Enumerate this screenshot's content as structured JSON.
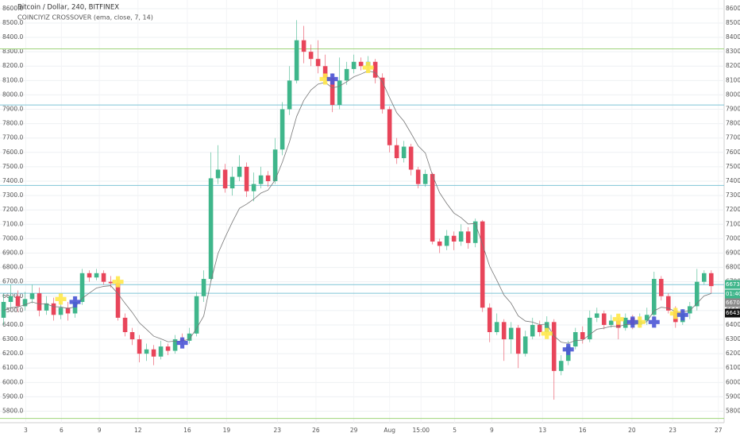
{
  "chart_data": {
    "type": "candlestick",
    "title": "Bitcoin / Dollar, 240, BITFINEX",
    "subtitle": "COINCIYIZ CROSSOVER (ema, close, 7, 14)",
    "up_color": "#3fb68b",
    "down_color": "#e8455a",
    "ema_color": "#777777",
    "open": [
      6450,
      6560,
      6600,
      6530,
      6580,
      6620,
      6500,
      6550,
      6470,
      6520,
      6480,
      6560,
      6760,
      6730,
      6760,
      6700,
      6690,
      6450,
      6350,
      6300,
      6200,
      6230,
      6180,
      6250,
      6220,
      6300,
      6290,
      6340,
      6600,
      6720,
      7420,
      7480,
      7350,
      7430,
      7500,
      7330,
      7380,
      7440,
      7400,
      7620,
      7900,
      8100,
      8380,
      8300,
      8250,
      8200,
      8120,
      7930,
      8100,
      8180,
      8230,
      8200,
      8230,
      8120,
      7900,
      7650,
      7560,
      7640,
      7480,
      7380,
      7450,
      6980,
      6950,
      7020,
      6980,
      7050,
      6970,
      7120,
      6520,
      6350,
      6420,
      6300,
      6380,
      6200,
      6320,
      6400,
      6350,
      6420,
      6080,
      6150,
      6250,
      6350,
      6300,
      6450,
      6480,
      6400,
      6430,
      6380,
      6450,
      6400,
      6430,
      6470,
      6720,
      6600,
      6500,
      6420,
      6480,
      6530,
      6700,
      6760
    ],
    "high": [
      6620,
      6680,
      6640,
      6630,
      6680,
      6660,
      6600,
      6590,
      6570,
      6560,
      6600,
      6790,
      6780,
      6790,
      6780,
      6740,
      6720,
      6480,
      6380,
      6330,
      6270,
      6260,
      6290,
      6270,
      6330,
      6340,
      6380,
      6630,
      6780,
      7600,
      7650,
      7520,
      7500,
      7580,
      7530,
      7460,
      7500,
      7470,
      7700,
      7950,
      8200,
      8520,
      8480,
      8350,
      8380,
      8280,
      8150,
      8260,
      8230,
      8280,
      8260,
      8270,
      8250,
      8150,
      7920,
      7700,
      7680,
      7660,
      7500,
      7480,
      7460,
      7000,
      7060,
      7050,
      7100,
      7080,
      7140,
      7130,
      6550,
      6480,
      6440,
      6420,
      6400,
      6360,
      6450,
      6430,
      6460,
      6440,
      6190,
      6290,
      6380,
      6390,
      6500,
      6520,
      6500,
      6470,
      6450,
      6480,
      6470,
      6480,
      6520,
      6770,
      6740,
      6620,
      6530,
      6510,
      6560,
      6790,
      6780,
      6780
    ],
    "low": [
      6400,
      6520,
      6490,
      6500,
      6550,
      6460,
      6470,
      6430,
      6440,
      6430,
      6450,
      6540,
      6700,
      6710,
      6680,
      6660,
      6430,
      6320,
      6260,
      6140,
      6150,
      6120,
      6160,
      6190,
      6200,
      6260,
      6270,
      6320,
      6560,
      6700,
      7380,
      7320,
      7300,
      7400,
      7290,
      7260,
      7350,
      7360,
      7380,
      7580,
      7860,
      8080,
      8220,
      8200,
      8150,
      8080,
      7880,
      7900,
      8070,
      8150,
      8170,
      8170,
      8080,
      7870,
      7600,
      7520,
      7530,
      7440,
      7350,
      7360,
      6960,
      6900,
      6920,
      6920,
      6950,
      6930,
      6940,
      6490,
      6280,
      6330,
      6150,
      6200,
      6100,
      6180,
      6300,
      6320,
      6330,
      5880,
      6050,
      6120,
      6230,
      6270,
      6280,
      6420,
      6370,
      6380,
      6300,
      6360,
      6370,
      6380,
      6400,
      6450,
      6570,
      6480,
      6380,
      6400,
      6440,
      6500,
      6680,
      6620
    ],
    "close": [
      6560,
      6600,
      6530,
      6580,
      6620,
      6500,
      6550,
      6470,
      6520,
      6480,
      6560,
      6760,
      6730,
      6760,
      6700,
      6690,
      6450,
      6350,
      6300,
      6200,
      6230,
      6180,
      6250,
      6220,
      6300,
      6290,
      6340,
      6600,
      6720,
      7420,
      7480,
      7350,
      7430,
      7500,
      7330,
      7380,
      7440,
      7400,
      7620,
      7900,
      8100,
      8380,
      8300,
      8250,
      8200,
      8120,
      7930,
      8100,
      8180,
      8230,
      8200,
      8230,
      8120,
      7900,
      7650,
      7560,
      7640,
      7480,
      7380,
      7450,
      6980,
      6950,
      7020,
      6980,
      7050,
      6970,
      7120,
      6520,
      6350,
      6420,
      6300,
      6380,
      6200,
      6320,
      6400,
      6350,
      6420,
      6080,
      6150,
      6250,
      6350,
      6300,
      6450,
      6480,
      6400,
      6430,
      6380,
      6450,
      6400,
      6430,
      6470,
      6720,
      6600,
      6500,
      6420,
      6480,
      6530,
      6700,
      6760,
      6670
    ],
    "ema": [
      6500,
      6520,
      6525,
      6540,
      6560,
      6545,
      6546,
      6527,
      6525,
      6514,
      6526,
      6585,
      6622,
      6657,
      6668,
      6673,
      6617,
      6550,
      6487,
      6415,
      6369,
      6322,
      6304,
      6283,
      6287,
      6288,
      6301,
      6376,
      6462,
      6702,
      6897,
      7010,
      7115,
      7211,
      7240,
      7275,
      7317,
      7338,
      7409,
      7532,
      7674,
      7850,
      7962,
      8034,
      8075,
      8087,
      8048,
      8061,
      8091,
      8126,
      8145,
      8167,
      8155,
      8091,
      7981,
      7876,
      7817,
      7733,
      7645,
      7596,
      7442,
      7319,
      7244,
      7178,
      7146,
      7102,
      7106,
      6960,
      6808,
      6711,
      6608,
      6551,
      6463,
      6427,
      6420,
      6402,
      6406,
      6324,
      6280,
      6272,
      6292,
      6294,
      6333,
      6370,
      6378,
      6391,
      6388,
      6403,
      6402,
      6409,
      6424,
      6498,
      6523,
      6517,
      6493,
      6490,
      6500,
      6550,
      6602,
      6619
    ],
    "crosses": [
      {
        "color": "#ffe84a",
        "x": [
          8,
          16,
          45,
          51,
          76,
          86,
          89,
          94
        ],
        "y": [
          6580,
          6700,
          8110,
          8190,
          6340,
          6440,
          6420,
          6480
        ]
      },
      {
        "color": "#4b57d6",
        "x": [
          10,
          25,
          46,
          79,
          88,
          91,
          95
        ],
        "y": [
          6560,
          6275,
          8110,
          6230,
          6420,
          6420,
          6470
        ]
      }
    ],
    "hlines": [
      {
        "value": 8320,
        "color": "#9ed47a"
      },
      {
        "value": 7930,
        "color": "#7fc4d6"
      },
      {
        "value": 7370,
        "color": "#7fc4d6"
      },
      {
        "value": 6680,
        "color": "#7fc4d6"
      },
      {
        "value": 6620,
        "color": "#7fc4d6"
      },
      {
        "value": 5750,
        "color": "#9ed47a"
      }
    ],
    "price_labels": [
      {
        "text": 6673.1,
        "color": "#3fb68b"
      },
      {
        "text": "01:40:11",
        "color": "#3fb68b"
      },
      {
        "text": 6670.7,
        "color": "#8a8a8a"
      },
      {
        "text": 6643.7,
        "color": "#111111"
      }
    ],
    "xlim": [
      -0.5,
      100.8
    ],
    "ylim": [
      5720,
      8660
    ],
    "xticks": [
      {
        "value": 3.1,
        "label": "3"
      },
      {
        "value": 8.1,
        "label": "6"
      },
      {
        "value": 13.4,
        "label": "9"
      },
      {
        "value": 18.8,
        "label": "12"
      },
      {
        "value": 25.7,
        "label": "16"
      },
      {
        "value": 31.2,
        "label": "19"
      },
      {
        "value": 38.3,
        "label": "23"
      },
      {
        "value": 43.7,
        "label": "26"
      },
      {
        "value": 49,
        "label": "29"
      },
      {
        "value": 54,
        "label": "Aug"
      },
      {
        "value": 58.4,
        "label": "15:00"
      },
      {
        "value": 63.1,
        "label": "5"
      },
      {
        "value": 68.3,
        "label": "9"
      },
      {
        "value": 75.4,
        "label": "13"
      },
      {
        "value": 81,
        "label": "16"
      },
      {
        "value": 87.9,
        "label": "20"
      },
      {
        "value": 93.6,
        "label": "23"
      },
      {
        "value": 100,
        "label": "27"
      }
    ],
    "yticks": [
      {
        "value": 5800,
        "label": "5800.0"
      },
      {
        "value": 5900,
        "label": "5900.0"
      },
      {
        "value": 6000,
        "label": "6000.0"
      },
      {
        "value": 6100,
        "label": "6100.0"
      },
      {
        "value": 6200,
        "label": "6200.0"
      },
      {
        "value": 6300,
        "label": "6300.0"
      },
      {
        "value": 6400,
        "label": "6400.0"
      },
      {
        "value": 6500,
        "label": "6500.0"
      },
      {
        "value": 6600,
        "label": "6600.0"
      },
      {
        "value": 6700,
        "label": "6700.0"
      },
      {
        "value": 6800,
        "label": "6800.0"
      },
      {
        "value": 6900,
        "label": "6900.0"
      },
      {
        "value": 7000,
        "label": "7000.0"
      },
      {
        "value": 7100,
        "label": "7100.0"
      },
      {
        "value": 7200,
        "label": "7200.0"
      },
      {
        "value": 7300,
        "label": "7300.0"
      },
      {
        "value": 7400,
        "label": "7400.0"
      },
      {
        "value": 7500,
        "label": "7500.0"
      },
      {
        "value": 7600,
        "label": "7600.0"
      },
      {
        "value": 7700,
        "label": "7700.0"
      },
      {
        "value": 7800,
        "label": "7800.0"
      },
      {
        "value": 7900,
        "label": "7900.0"
      },
      {
        "value": 8000,
        "label": "8000.0"
      },
      {
        "value": 8100,
        "label": "8100.0"
      },
      {
        "value": 8200,
        "label": "8200.0"
      },
      {
        "value": 8300,
        "label": "8300.0"
      },
      {
        "value": 8400,
        "label": "8400.0"
      },
      {
        "value": 8500,
        "label": "8500.0"
      },
      {
        "value": 8600,
        "label": "8600.0"
      }
    ],
    "grid": true
  }
}
